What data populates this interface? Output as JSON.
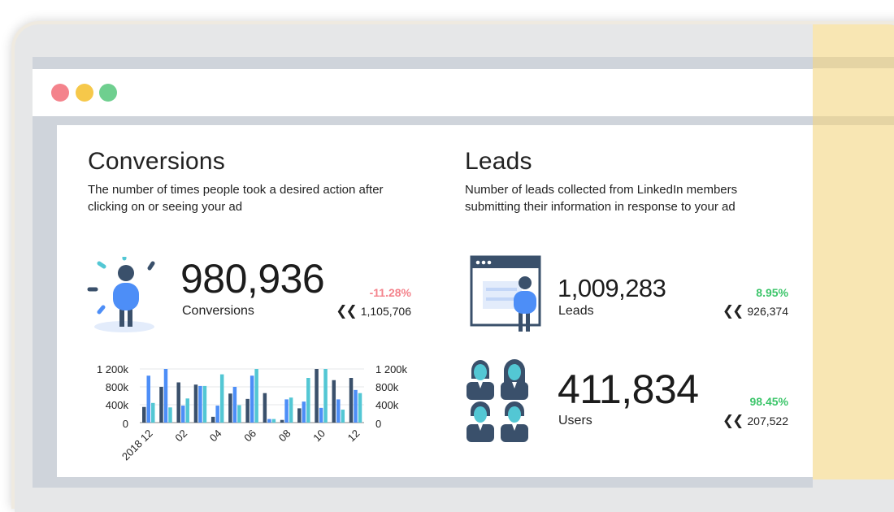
{
  "colors": {
    "negative": "#f4838c",
    "positive": "#3cc56a",
    "bar_dark": "#3a506b",
    "bar_blue": "#4d8ef7",
    "bar_teal": "#53c7d4"
  },
  "window": {
    "controls": [
      "close",
      "minimize",
      "maximize"
    ]
  },
  "conversions": {
    "title": "Conversions",
    "description_line1": "The number of times people took a desired action after",
    "description_line2": "clicking on or seeing your ad",
    "value": "980,936",
    "label": "Conversions",
    "change": "-11.28%",
    "previous": "1,105,706",
    "icon": "person-icon"
  },
  "leads": {
    "title": "Leads",
    "description_line1": "Number of leads collected from LinkedIn members",
    "description_line2": "submitting their information in response to your ad",
    "leads_value": "1,009,283",
    "leads_label": "Leads",
    "leads_change": "8.95%",
    "leads_previous": "926,374",
    "users_value": "411,834",
    "users_label": "Users",
    "users_change": "98.45%",
    "users_previous": "207,522"
  },
  "chart_data": {
    "type": "bar",
    "title": "",
    "xlabel": "",
    "ylabel": "",
    "ylim": [
      0,
      1200000
    ],
    "y_ticks_left": [
      "1 200k",
      "800k",
      "400k",
      "0"
    ],
    "y_ticks_right": [
      "1 200k",
      "800k",
      "400k",
      "0"
    ],
    "x_tick_labels": [
      "2018 12",
      "02",
      "04",
      "06",
      "08",
      "10",
      "12"
    ],
    "categories": [
      "2018 12",
      "01",
      "02",
      "03",
      "04",
      "05",
      "06",
      "07",
      "08",
      "09",
      "10",
      "11",
      "12"
    ],
    "series": [
      {
        "name": "series-a",
        "color": "#3a506b",
        "values": [
          350000,
          800000,
          900000,
          850000,
          130000,
          650000,
          530000,
          660000,
          60000,
          320000,
          1200000,
          950000,
          1000000
        ]
      },
      {
        "name": "series-b",
        "color": "#4d8ef7",
        "values": [
          1050000,
          1200000,
          380000,
          820000,
          380000,
          800000,
          1050000,
          80000,
          520000,
          470000,
          330000,
          520000,
          730000
        ]
      },
      {
        "name": "series-c",
        "color": "#53c7d4",
        "values": [
          440000,
          340000,
          540000,
          820000,
          1080000,
          390000,
          1200000,
          80000,
          560000,
          1000000,
          1200000,
          290000,
          660000
        ]
      }
    ]
  }
}
